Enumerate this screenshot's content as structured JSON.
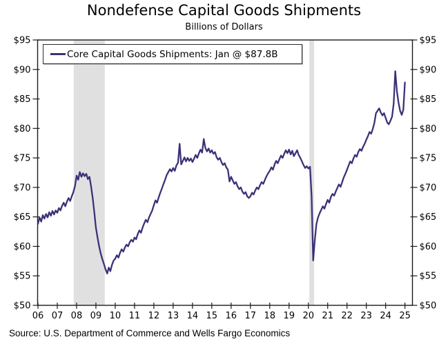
{
  "title": "Nondefense Capital Goods Shipments",
  "subtitle": "Billions of Dollars",
  "source": "Source: U.S. Department of Commerce and Wells Fargo Economics",
  "legend": {
    "label": "Core Capital Goods Shipments: Jan @ $87.8B",
    "latest_point": "Jan @ $87.8B"
  },
  "colors": {
    "line": "#3b3178",
    "recession_band": "#e0e0e0",
    "axis": "#1a1a1a",
    "text": "#000000"
  },
  "chart_data": {
    "type": "line",
    "title": "Nondefense Capital Goods Shipments",
    "subtitle": "Billions of Dollars",
    "xlabel": "",
    "ylabel": "Billions of Dollars",
    "ylim": [
      50,
      95
    ],
    "grid": false,
    "legend_position": "top-left",
    "frequency": "monthly",
    "x_start": "2006-01",
    "x_end": "2025-01",
    "x_tick_labels": [
      "06",
      "07",
      "08",
      "09",
      "10",
      "11",
      "12",
      "13",
      "14",
      "15",
      "16",
      "17",
      "18",
      "19",
      "20",
      "21",
      "22",
      "23",
      "24",
      "25"
    ],
    "y_ticks": [
      {
        "value": 50,
        "label": "$50"
      },
      {
        "value": 55,
        "label": "$55"
      },
      {
        "value": 60,
        "label": "$60"
      },
      {
        "value": 65,
        "label": "$65"
      },
      {
        "value": 70,
        "label": "$70"
      },
      {
        "value": 75,
        "label": "$75"
      },
      {
        "value": 80,
        "label": "$80"
      },
      {
        "value": 85,
        "label": "$85"
      },
      {
        "value": 90,
        "label": "$90"
      },
      {
        "value": 95,
        "label": "$95"
      }
    ],
    "recession_bands": [
      {
        "start": 2007.85,
        "end": 2009.46
      },
      {
        "start": 2020.05,
        "end": 2020.3
      }
    ],
    "series": [
      {
        "name": "Core Capital Goods Shipments",
        "color": "#3b3178",
        "values": [
          63.8,
          64.9,
          64.2,
          65.3,
          64.7,
          65.5,
          64.9,
          65.8,
          65.2,
          66.0,
          65.4,
          66.1,
          65.7,
          66.5,
          66.1,
          66.9,
          67.4,
          66.8,
          67.6,
          68.2,
          67.7,
          68.5,
          69.2,
          70.2,
          72.0,
          71.3,
          72.6,
          71.8,
          72.4,
          71.9,
          72.3,
          71.4,
          71.8,
          70.2,
          68.2,
          65.8,
          63.2,
          61.5,
          60.0,
          58.8,
          57.8,
          57.0,
          56.1,
          55.4,
          56.4,
          55.8,
          56.9,
          57.6,
          57.9,
          58.5,
          58.1,
          58.9,
          59.5,
          59.1,
          59.8,
          60.3,
          60.0,
          60.7,
          61.1,
          60.8,
          61.5,
          61.2,
          62.1,
          62.7,
          62.3,
          63.2,
          63.9,
          64.5,
          64.1,
          64.9,
          65.5,
          66.1,
          67.0,
          67.8,
          67.4,
          68.3,
          69.1,
          69.8,
          70.6,
          71.3,
          72.1,
          72.6,
          73.1,
          72.7,
          73.3,
          72.8,
          73.7,
          74.2,
          77.4,
          73.9,
          74.5,
          75.1,
          74.4,
          75.0,
          74.5,
          74.9,
          74.3,
          74.9,
          75.5,
          75.0,
          75.8,
          76.4,
          75.9,
          78.2,
          76.7,
          76.1,
          76.6,
          75.9,
          76.3,
          75.7,
          76.0,
          75.1,
          74.7,
          75.0,
          74.3,
          73.8,
          74.1,
          73.4,
          73.0,
          71.0,
          71.8,
          71.2,
          70.6,
          70.9,
          70.2,
          69.7,
          70.0,
          69.3,
          68.9,
          69.2,
          68.5,
          68.2,
          68.5,
          69.1,
          68.8,
          69.5,
          70.0,
          69.7,
          70.4,
          70.9,
          70.6,
          71.3,
          71.9,
          72.4,
          72.8,
          73.4,
          73.0,
          73.9,
          74.5,
          74.1,
          74.8,
          75.4,
          75.0,
          75.7,
          76.3,
          75.8,
          76.4,
          75.6,
          76.2,
          75.3,
          75.8,
          76.3,
          75.5,
          75.0,
          74.4,
          73.8,
          73.3,
          73.6,
          73.2,
          73.5,
          68.5,
          57.6,
          61.0,
          63.8,
          64.9,
          65.6,
          66.2,
          66.8,
          66.4,
          67.2,
          67.9,
          67.4,
          68.4,
          68.9,
          68.6,
          69.3,
          69.9,
          70.5,
          70.1,
          70.9,
          71.7,
          72.3,
          73.0,
          73.7,
          74.4,
          74.1,
          74.9,
          75.5,
          75.2,
          76.0,
          76.5,
          76.2,
          76.9,
          77.4,
          78.1,
          78.7,
          79.4,
          79.1,
          79.9,
          80.9,
          82.6,
          83.0,
          83.4,
          82.7,
          82.2,
          82.6,
          81.8,
          81.0,
          80.7,
          81.3,
          82.0,
          84.2,
          89.7,
          86.3,
          84.4,
          83.0,
          82.3,
          83.2,
          87.8
        ]
      }
    ]
  }
}
